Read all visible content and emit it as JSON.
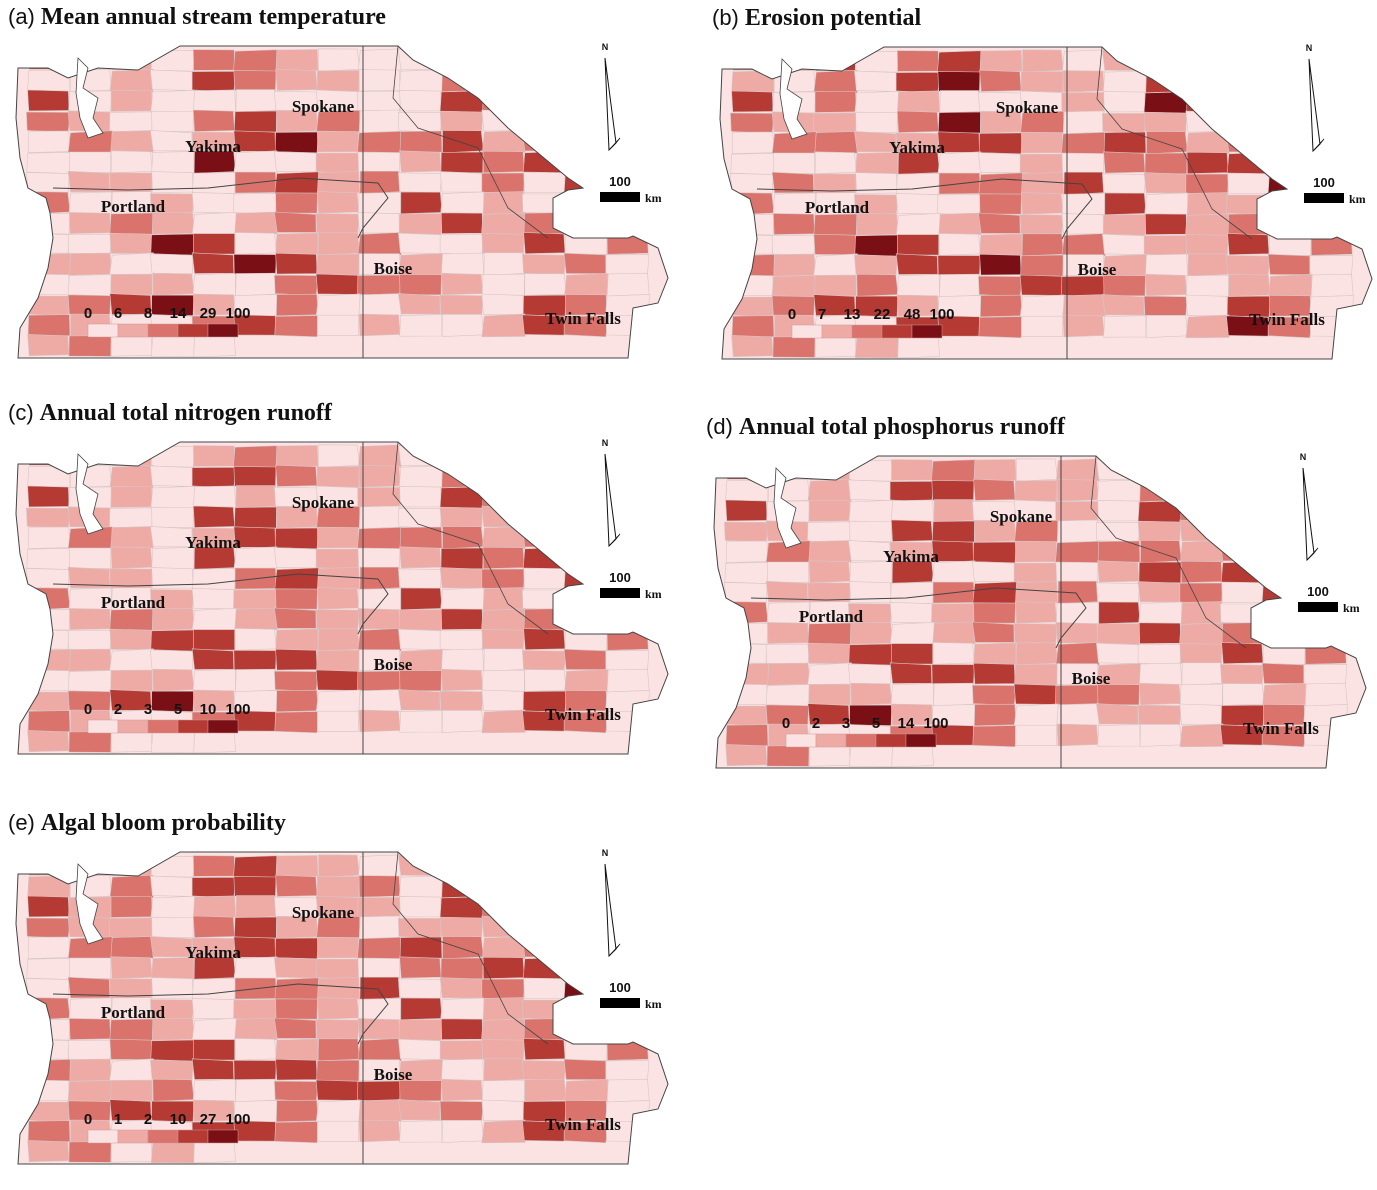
{
  "colors": {
    "class1": "#fbe3e3",
    "class2": "#eeaaa5",
    "class3": "#d9736c",
    "class4": "#b43a33",
    "class5": "#7a1016",
    "outline": "#444444",
    "water": "#ffffff"
  },
  "common": {
    "north_label": "N",
    "scale_value": "100",
    "scale_unit": "km"
  },
  "panels": [
    {
      "letter": "(a)",
      "title": "Mean annual stream temperature",
      "legend": [
        "0",
        "6",
        "8",
        "14",
        "29",
        "100"
      ],
      "cities": [
        "Spokane",
        "Yakima",
        "Portland",
        "Boise",
        "Twin Falls"
      ],
      "region_classes": [
        4,
        1,
        2,
        1,
        3,
        3,
        2,
        1,
        1,
        1,
        4,
        2,
        3,
        2,
        2,
        1,
        1,
        2,
        1,
        4,
        3,
        2,
        2,
        1,
        1,
        3,
        4,
        5,
        4,
        3,
        4,
        1,
        2,
        1,
        1,
        1,
        1,
        1,
        1,
        1,
        4,
        3,
        2,
        2,
        1,
        3,
        2,
        1,
        1,
        3,
        4,
        2,
        3,
        1,
        1,
        2,
        1,
        1,
        2,
        4,
        1,
        3,
        2,
        1,
        2,
        4,
        5,
        2,
        3,
        3,
        4,
        2,
        3,
        2,
        2,
        1,
        1,
        1,
        1,
        5,
        1,
        1,
        2,
        1,
        2,
        4,
        3,
        4,
        3,
        2,
        1,
        2,
        2,
        1,
        1,
        3,
        4,
        2,
        3,
        1,
        1,
        3,
        1,
        4,
        2,
        3,
        1,
        1,
        2,
        1,
        1,
        3,
        2,
        1,
        4,
        1,
        2,
        1,
        5,
        4,
        1,
        2,
        3,
        2,
        1,
        2,
        3,
        2,
        1,
        2,
        4,
        2,
        3,
        2,
        1,
        1,
        1,
        2,
        5,
        4,
        1,
        2,
        2,
        3,
        1,
        1,
        2,
        4,
        1,
        3,
        2,
        2,
        1,
        1,
        4,
        5,
        4,
        2,
        1,
        2,
        1,
        1,
        2,
        3,
        1,
        1,
        1,
        2,
        2,
        1,
        1,
        3,
        4,
        3,
        3,
        2,
        1,
        1,
        2,
        1,
        2,
        3,
        4,
        5,
        2,
        1,
        3,
        1,
        1,
        2,
        2,
        1,
        4,
        3,
        1,
        3,
        2,
        1,
        1,
        3,
        4,
        3,
        1,
        2,
        1,
        1,
        2,
        4,
        3,
        1,
        2,
        3,
        1,
        1,
        1
      ]
    },
    {
      "letter": "(b)",
      "title": "Erosion potential",
      "legend": [
        "0",
        "7",
        "13",
        "22",
        "48",
        "100"
      ],
      "cities": [
        "Spokane",
        "Yakima",
        "Portland",
        "Boise",
        "Twin Falls"
      ],
      "region_classes": [
        3,
        2,
        4,
        1,
        3,
        4,
        2,
        2,
        1,
        2,
        4,
        3,
        3,
        2,
        1,
        2,
        1,
        3,
        1,
        4,
        5,
        3,
        2,
        2,
        1,
        4,
        4,
        5,
        4,
        3,
        4,
        1,
        3,
        1,
        2,
        1,
        1,
        1,
        2,
        1,
        5,
        4,
        2,
        3,
        1,
        3,
        2,
        2,
        1,
        3,
        5,
        2,
        3,
        1,
        2,
        2,
        1,
        1,
        2,
        4,
        1,
        3,
        3,
        2,
        2,
        4,
        4,
        2,
        3,
        4,
        3,
        2,
        3,
        3,
        2,
        1,
        1,
        1,
        2,
        4,
        1,
        1,
        2,
        1,
        3,
        3,
        4,
        4,
        2,
        2,
        1,
        3,
        2,
        1,
        1,
        3,
        3,
        2,
        4,
        1,
        2,
        3,
        1,
        5,
        2,
        3,
        1,
        1,
        2,
        1,
        1,
        3,
        2,
        1,
        4,
        1,
        2,
        2,
        4,
        5,
        1,
        3,
        3,
        2,
        1,
        2,
        3,
        2,
        1,
        2,
        4,
        2,
        3,
        2,
        2,
        1,
        1,
        3,
        5,
        4,
        1,
        2,
        3,
        3,
        1,
        2,
        2,
        4,
        1,
        3,
        3,
        2,
        1,
        2,
        4,
        4,
        5,
        3,
        1,
        2,
        1,
        2,
        2,
        3,
        1,
        1,
        2,
        2,
        3,
        1,
        1,
        3,
        4,
        4,
        3,
        2,
        1,
        2,
        2,
        1,
        2,
        3,
        4,
        4,
        2,
        1,
        3,
        1,
        2,
        2,
        3,
        1,
        4,
        3,
        1,
        3,
        2,
        1,
        1,
        4,
        4,
        3,
        1,
        2,
        1,
        1,
        2,
        5,
        3,
        1,
        2,
        3,
        1,
        2,
        1
      ]
    },
    {
      "letter": "(c)",
      "title": "Annual total nitrogen runoff",
      "legend": [
        "0",
        "2",
        "3",
        "5",
        "10",
        "100"
      ],
      "cities": [
        "Spokane",
        "Yakima",
        "Portland",
        "Boise",
        "Twin Falls"
      ],
      "region_classes": [
        4,
        1,
        2,
        1,
        2,
        3,
        2,
        1,
        2,
        1,
        4,
        2,
        3,
        2,
        2,
        1,
        1,
        2,
        1,
        4,
        4,
        3,
        2,
        2,
        1,
        3,
        4,
        4,
        3,
        3,
        4,
        1,
        2,
        1,
        1,
        2,
        1,
        1,
        2,
        1,
        4,
        3,
        3,
        2,
        1,
        2,
        2,
        1,
        1,
        4,
        4,
        2,
        3,
        1,
        1,
        2,
        2,
        1,
        2,
        4,
        1,
        3,
        2,
        1,
        2,
        4,
        4,
        2,
        3,
        3,
        3,
        2,
        3,
        2,
        2,
        1,
        1,
        2,
        1,
        4,
        1,
        1,
        2,
        1,
        2,
        4,
        3,
        4,
        3,
        2,
        1,
        2,
        2,
        1,
        1,
        3,
        4,
        2,
        3,
        1,
        2,
        3,
        1,
        4,
        2,
        3,
        1,
        1,
        2,
        1,
        2,
        3,
        2,
        1,
        4,
        1,
        2,
        1,
        4,
        4,
        1,
        2,
        3,
        2,
        1,
        2,
        3,
        2,
        2,
        2,
        4,
        2,
        3,
        2,
        1,
        1,
        1,
        2,
        4,
        4,
        1,
        2,
        2,
        3,
        1,
        1,
        2,
        4,
        1,
        3,
        2,
        2,
        1,
        1,
        4,
        4,
        4,
        2,
        1,
        2,
        1,
        1,
        2,
        3,
        1,
        1,
        1,
        2,
        2,
        1,
        1,
        3,
        4,
        3,
        3,
        2,
        1,
        1,
        2,
        1,
        2,
        3,
        4,
        5,
        2,
        1,
        3,
        1,
        1,
        2,
        2,
        1,
        4,
        3,
        1,
        3,
        2,
        1,
        1,
        3,
        4,
        3,
        1,
        2,
        1,
        1,
        2,
        4,
        3,
        1,
        2,
        3,
        1,
        1,
        1
      ]
    },
    {
      "letter": "(d)",
      "title": "Annual total phosphorus runoff",
      "legend": [
        "0",
        "2",
        "3",
        "5",
        "14",
        "100"
      ],
      "cities": [
        "Spokane",
        "Yakima",
        "Portland",
        "Boise",
        "Twin Falls"
      ],
      "region_classes": [
        4,
        1,
        2,
        1,
        2,
        3,
        2,
        1,
        2,
        1,
        4,
        2,
        3,
        2,
        2,
        1,
        1,
        2,
        1,
        4,
        4,
        3,
        2,
        2,
        1,
        3,
        4,
        4,
        3,
        3,
        4,
        1,
        2,
        1,
        1,
        2,
        1,
        1,
        2,
        1,
        4,
        3,
        3,
        2,
        1,
        2,
        2,
        1,
        1,
        4,
        4,
        2,
        3,
        1,
        1,
        2,
        2,
        1,
        2,
        4,
        1,
        3,
        2,
        1,
        2,
        4,
        4,
        2,
        3,
        3,
        3,
        2,
        3,
        2,
        2,
        1,
        1,
        2,
        1,
        4,
        1,
        1,
        2,
        1,
        2,
        4,
        3,
        4,
        3,
        2,
        1,
        2,
        2,
        1,
        1,
        3,
        4,
        2,
        3,
        1,
        2,
        3,
        1,
        4,
        2,
        3,
        1,
        1,
        2,
        1,
        2,
        3,
        2,
        1,
        4,
        1,
        2,
        1,
        4,
        4,
        1,
        2,
        3,
        2,
        1,
        2,
        3,
        2,
        2,
        2,
        4,
        2,
        3,
        2,
        1,
        1,
        1,
        2,
        4,
        4,
        1,
        2,
        2,
        3,
        1,
        1,
        2,
        4,
        1,
        3,
        2,
        2,
        1,
        1,
        4,
        4,
        4,
        2,
        1,
        2,
        1,
        1,
        2,
        3,
        1,
        1,
        1,
        2,
        2,
        1,
        1,
        3,
        4,
        3,
        3,
        2,
        1,
        1,
        2,
        1,
        2,
        3,
        4,
        5,
        2,
        1,
        3,
        1,
        1,
        2,
        2,
        1,
        4,
        3,
        1,
        3,
        2,
        1,
        1,
        3,
        4,
        3,
        1,
        2,
        1,
        1,
        2,
        4,
        3,
        1,
        2,
        3,
        1,
        1,
        1
      ]
    },
    {
      "letter": "(e)",
      "title": "Algal bloom probability",
      "legend": [
        "0",
        "1",
        "2",
        "10",
        "27",
        "100"
      ],
      "cities": [
        "Spokane",
        "Yakima",
        "Portland",
        "Boise",
        "Twin Falls"
      ],
      "region_classes": [
        3,
        2,
        2,
        1,
        3,
        4,
        2,
        2,
        1,
        2,
        4,
        3,
        3,
        2,
        2,
        2,
        1,
        3,
        1,
        4,
        4,
        3,
        2,
        3,
        1,
        4,
        4,
        4,
        3,
        3,
        4,
        2,
        3,
        1,
        2,
        2,
        1,
        2,
        2,
        1,
        4,
        3,
        3,
        3,
        1,
        3,
        2,
        2,
        1,
        3,
        4,
        2,
        3,
        1,
        2,
        2,
        2,
        1,
        2,
        4,
        1,
        3,
        3,
        2,
        2,
        4,
        4,
        2,
        3,
        4,
        3,
        2,
        3,
        3,
        2,
        1,
        1,
        2,
        2,
        4,
        1,
        2,
        2,
        1,
        3,
        3,
        4,
        4,
        3,
        2,
        1,
        3,
        2,
        1,
        1,
        3,
        3,
        2,
        4,
        1,
        2,
        3,
        1,
        5,
        2,
        3,
        1,
        1,
        2,
        1,
        2,
        3,
        2,
        1,
        4,
        1,
        2,
        2,
        4,
        4,
        1,
        3,
        3,
        2,
        1,
        2,
        3,
        2,
        2,
        2,
        4,
        2,
        3,
        2,
        2,
        1,
        1,
        3,
        4,
        4,
        1,
        2,
        3,
        3,
        1,
        2,
        2,
        4,
        1,
        3,
        3,
        2,
        1,
        2,
        4,
        4,
        4,
        3,
        1,
        2,
        1,
        2,
        2,
        3,
        1,
        1,
        2,
        2,
        3,
        1,
        1,
        3,
        4,
        4,
        3,
        2,
        1,
        2,
        2,
        1,
        2,
        3,
        4,
        4,
        2,
        1,
        3,
        1,
        2,
        2,
        3,
        1,
        4,
        3,
        1,
        3,
        2,
        1,
        1,
        4,
        4,
        3,
        1,
        2,
        1,
        1,
        2,
        4,
        3,
        1,
        2,
        3,
        1,
        2,
        1
      ]
    }
  ]
}
